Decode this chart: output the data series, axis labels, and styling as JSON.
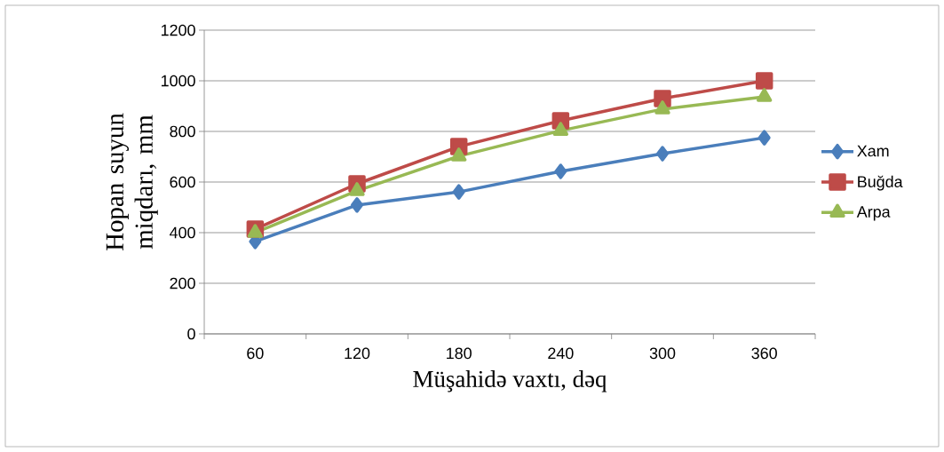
{
  "chart_data": {
    "type": "line",
    "xlabel": "Müşahidə vaxtı, dəq",
    "ylabel": "Hopan suyun miqdarı, mm",
    "categories": [
      "60",
      "120",
      "180",
      "240",
      "300",
      "360"
    ],
    "series": [
      {
        "name": "Xam",
        "color": "#4a7ebb",
        "marker": "diamond",
        "values": [
          365,
          509,
          561,
          642,
          712,
          775
        ]
      },
      {
        "name": "Buğda",
        "color": "#be4b48",
        "marker": "square",
        "values": [
          414,
          593,
          740,
          842,
          930,
          1000
        ]
      },
      {
        "name": "Arpa",
        "color": "#98b954",
        "marker": "triangle",
        "values": [
          400,
          565,
          702,
          803,
          888,
          937
        ]
      }
    ],
    "ylim": [
      0,
      1200
    ],
    "yticks": [
      0,
      200,
      400,
      600,
      800,
      1000,
      1200
    ],
    "grid": "y",
    "legend": "right"
  }
}
